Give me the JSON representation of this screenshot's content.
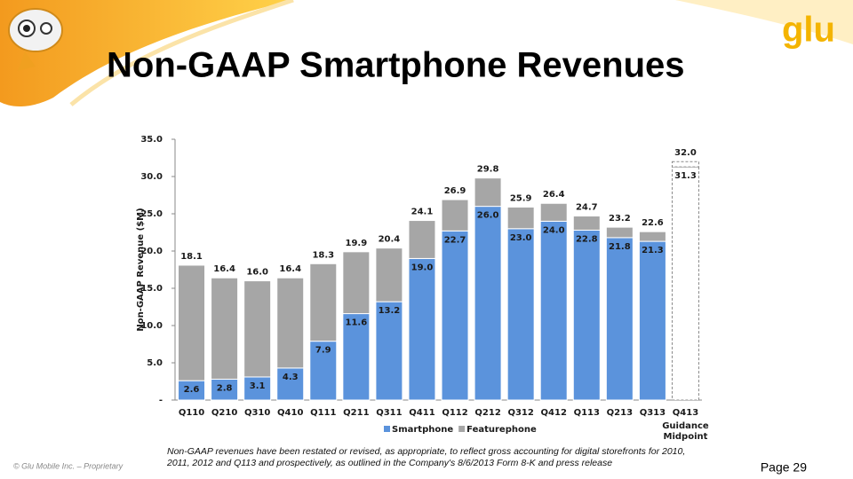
{
  "header": {
    "title": "Non-GAAP Smartphone Revenues",
    "logo": "glu"
  },
  "chart_data": {
    "type": "stacked_bar",
    "y_label": "Non-GAAP Revenue ($M)",
    "categories": [
      "Q110",
      "Q210",
      "Q310",
      "Q410",
      "Q111",
      "Q211",
      "Q311",
      "Q411",
      "Q112",
      "Q212",
      "Q312",
      "Q412",
      "Q113",
      "Q213",
      "Q313",
      "Q413"
    ],
    "guidance": [
      null,
      null,
      null,
      null,
      null,
      null,
      null,
      null,
      null,
      null,
      null,
      null,
      null,
      null,
      null,
      "Guidance Midpoint"
    ],
    "series": [
      {
        "name": "Smartphone",
        "color": "#5b93dc",
        "values": [
          2.6,
          2.8,
          3.1,
          4.3,
          7.9,
          11.6,
          13.2,
          19.0,
          22.7,
          26.0,
          23.0,
          24.0,
          22.8,
          21.8,
          21.3,
          31.3
        ],
        "value_labels": [
          "2.6",
          "2.8",
          "3.1",
          "4.3",
          "7.9",
          "11.6",
          "13.2",
          "19.0",
          "22.7",
          "26.0",
          "23.0",
          "24.0",
          "22.8",
          "21.8",
          "21.3",
          "31.3"
        ]
      },
      {
        "name": "Featurephone",
        "color": "#a6a6a6",
        "values": [
          15.5,
          13.6,
          12.9,
          12.1,
          10.4,
          8.3,
          7.2,
          5.1,
          4.2,
          3.8,
          2.9,
          2.4,
          1.9,
          1.4,
          1.3,
          0.7
        ]
      }
    ],
    "totals": {
      "values": [
        18.1,
        16.4,
        16.0,
        16.4,
        18.3,
        19.9,
        20.4,
        24.1,
        26.9,
        29.8,
        25.9,
        26.4,
        24.7,
        23.2,
        22.6,
        32.0
      ],
      "value_labels": [
        "18.1",
        "16.4",
        "16.0",
        "16.4",
        "18.3",
        "19.9",
        "20.4",
        "24.1",
        "26.9",
        "29.8",
        "25.9",
        "26.4",
        "24.7",
        "23.2",
        "22.6",
        "32.0"
      ]
    },
    "ylim": [
      0,
      35
    ],
    "yticks": [
      {
        "value": 0,
        "label": "-"
      },
      {
        "value": 5,
        "label": "5.0"
      },
      {
        "value": 10,
        "label": "10.0"
      },
      {
        "value": 15,
        "label": "15.0"
      },
      {
        "value": 20,
        "label": "20.0"
      },
      {
        "value": 25,
        "label": "25.0"
      },
      {
        "value": 30,
        "label": "30.0"
      },
      {
        "value": 35,
        "label": "35.0"
      }
    ],
    "legend": "bottom"
  },
  "footnote": "Non-GAAP revenues have been restated or revised, as appropriate, to reflect gross accounting for digital storefronts for 2010, 2011, 2012 and Q113 and prospectively, as outlined in the Company's 8/6/2013 Form 8-K and press release",
  "footer": {
    "copyright": "© Glu Mobile Inc. – Proprietary",
    "page": "Page 29"
  }
}
